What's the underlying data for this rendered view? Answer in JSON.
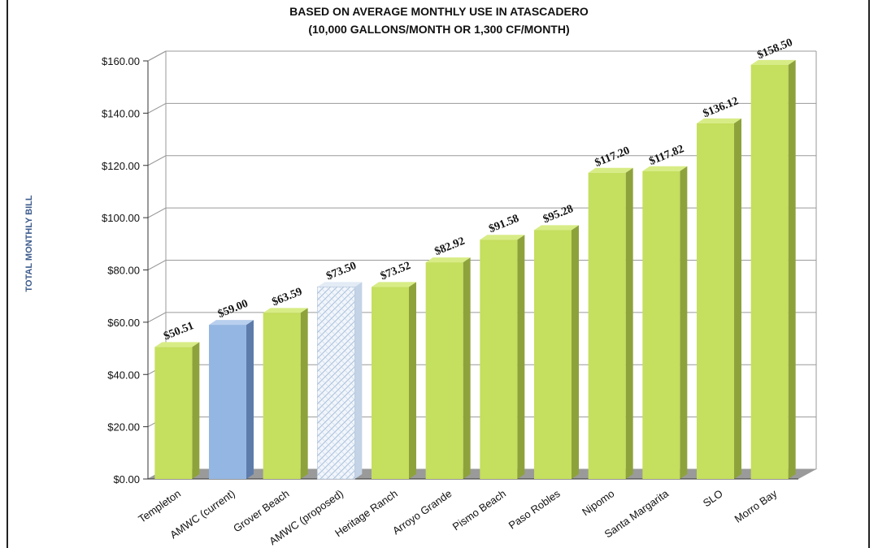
{
  "chart_data": {
    "type": "bar",
    "title": "BASED ON AVERAGE MONTHLY USE IN ATASCADERO",
    "subtitle": "(10,000 GALLONS/MONTH OR 1,300 CF/MONTH)",
    "xlabel": "",
    "ylabel": "TOTAL MONTHLY BILL",
    "ylim": [
      0,
      160
    ],
    "ytick_step": 20,
    "yticks": [
      "$0.00",
      "$20.00",
      "$40.00",
      "$60.00",
      "$80.00",
      "$100.00",
      "$120.00",
      "$140.00",
      "$160.00"
    ],
    "grid": true,
    "categories": [
      "Templeton",
      "AMWC (current)",
      "Grover Beach",
      "AMWC (proposed)",
      "Heritage Ranch",
      "Arroyo Grande",
      "Pismo Beach",
      "Paso Robles",
      "Nipomo",
      "Santa Margarita",
      "SLO",
      "Morro Bay"
    ],
    "values": [
      50.51,
      59.0,
      63.59,
      73.5,
      73.52,
      82.92,
      91.58,
      95.28,
      117.2,
      117.82,
      136.12,
      158.5
    ],
    "data_labels": [
      "$50.51",
      "$59.00",
      "$63.59",
      "$73.50",
      "$73.52",
      "$82.92",
      "$91.58",
      "$95.28",
      "$117.20",
      "$117.82",
      "$136.12",
      "$158.50"
    ],
    "bar_styles": [
      "green",
      "blue",
      "green",
      "hatched",
      "green",
      "green",
      "green",
      "green",
      "green",
      "green",
      "green",
      "green"
    ]
  },
  "colors": {
    "green_front": "#c5df5e",
    "green_side": "#8ea23c",
    "green_top": "#d8ec86",
    "blue_front": "#94b6e2",
    "blue_side": "#5d7cab",
    "blue_top": "#b8cfee",
    "hatched_front": "#f2f6fb",
    "hatched_line": "#a8bfdc",
    "floor": "#9a9a9a",
    "grid": "#9a9a9a",
    "ylabel": "#3c5b8c"
  }
}
